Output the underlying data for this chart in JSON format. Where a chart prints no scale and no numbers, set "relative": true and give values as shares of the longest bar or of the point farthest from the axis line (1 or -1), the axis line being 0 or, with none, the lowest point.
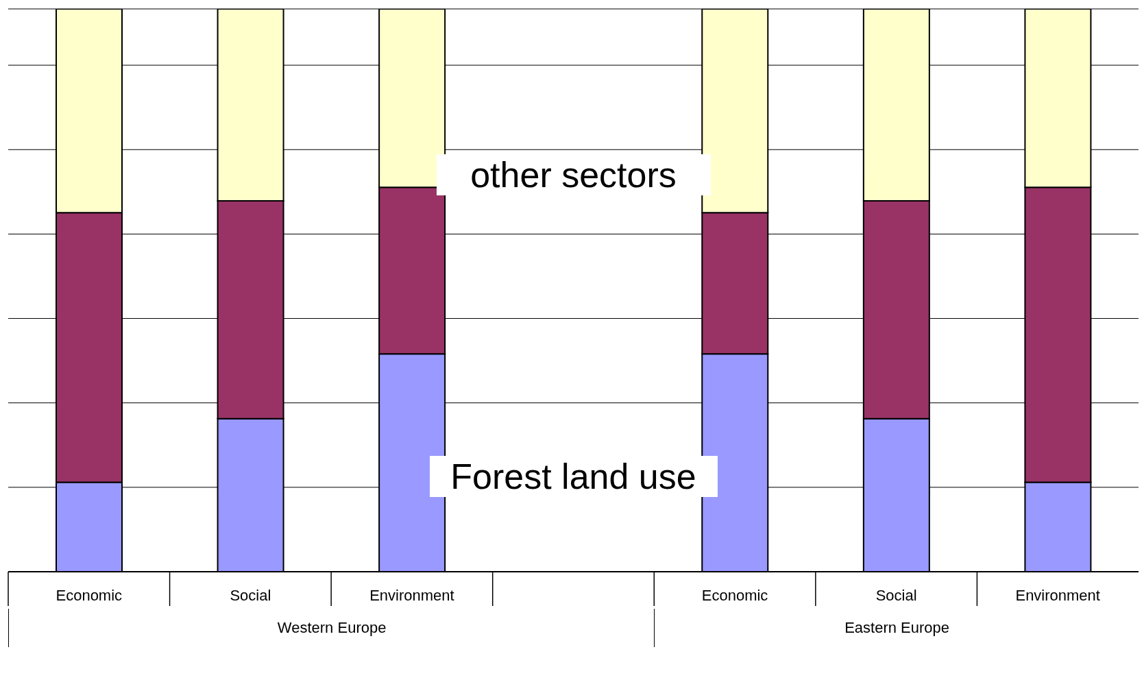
{
  "chart_data": {
    "type": "bar",
    "stacked": true,
    "relative": true,
    "grid": "y",
    "categories": [
      "Economic",
      "Social",
      "Environment",
      null,
      "Economic",
      "Social",
      "Environment"
    ],
    "series": [
      {
        "color": "#9999ff",
        "values": [
          0.159,
          0.272,
          0.387,
          null,
          0.387,
          0.272,
          0.159
        ]
      },
      {
        "color": "#993366",
        "values": [
          0.479,
          0.387,
          0.296,
          null,
          0.251,
          0.387,
          0.524
        ]
      },
      {
        "color": "#ffffcc",
        "values": [
          0.362,
          0.341,
          0.317,
          null,
          0.362,
          0.341,
          0.317
        ]
      }
    ],
    "annotations": [
      "other sectors",
      "Forest land use",
      "Western Europe",
      "Eastern Europe"
    ]
  }
}
